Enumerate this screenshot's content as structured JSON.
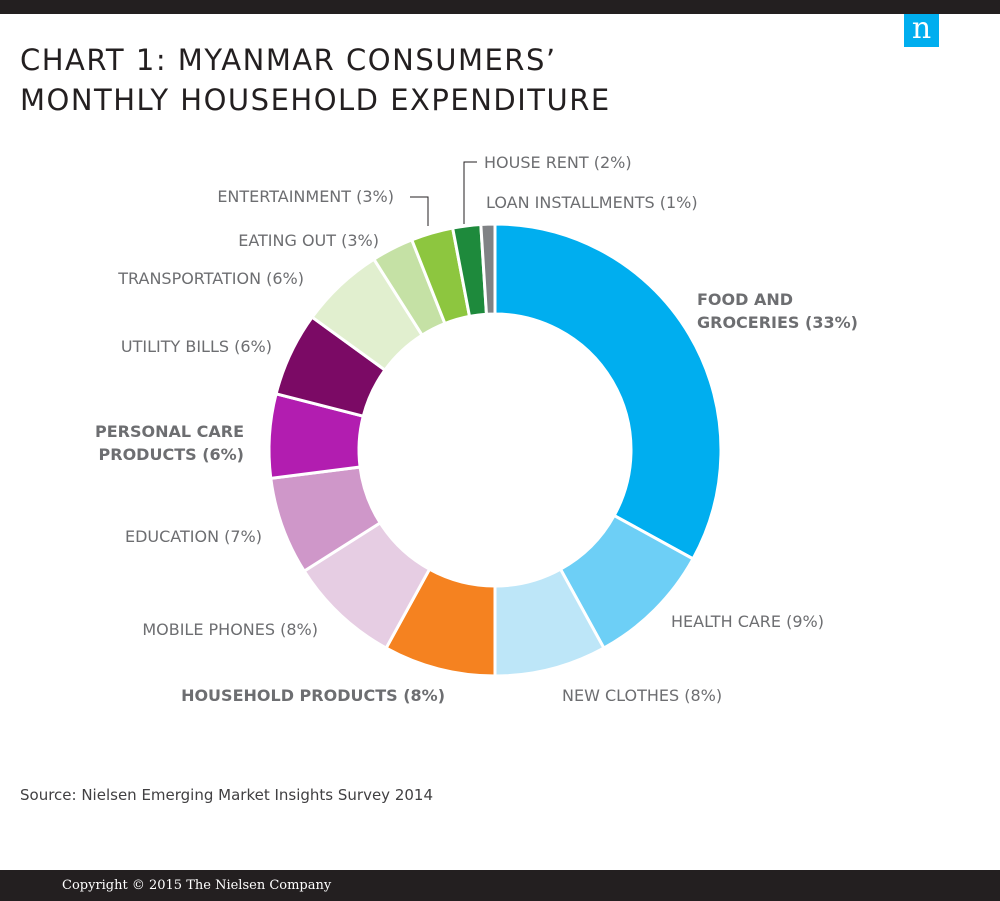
{
  "header": {
    "title_line1": "CHART 1: MYANMAR CONSUMERS’",
    "title_line2": "MONTHLY HOUSEHOLD EXPENDITURE",
    "logo_text": "n"
  },
  "chart_data": {
    "type": "pie",
    "style": "donut",
    "title": "CHART 1: MYANMAR CONSUMERS’ MONTHLY HOUSEHOLD EXPENDITURE",
    "slices": [
      {
        "label": "FOOD AND GROCERIES (33%)",
        "label_lines": [
          "FOOD AND",
          "GROCERIES (33%)"
        ],
        "value": 33,
        "color": "#00aeef",
        "highlight": true
      },
      {
        "label": "HEALTH CARE (9%)",
        "label_lines": [
          "HEALTH CARE (9%)"
        ],
        "value": 9,
        "color": "#6dcff6",
        "highlight": false
      },
      {
        "label": "NEW CLOTHES (8%)",
        "label_lines": [
          "NEW CLOTHES (8%)"
        ],
        "value": 8,
        "color": "#bde6f8",
        "highlight": false
      },
      {
        "label": "HOUSEHOLD PRODUCTS (8%)",
        "label_lines": [
          "HOUSEHOLD PRODUCTS (8%)"
        ],
        "value": 8,
        "color": "#f58220",
        "highlight": true
      },
      {
        "label": "MOBILE PHONES (8%)",
        "label_lines": [
          "MOBILE PHONES (8%)"
        ],
        "value": 8,
        "color": "#e6cde3",
        "highlight": false
      },
      {
        "label": "EDUCATION (7%)",
        "label_lines": [
          "EDUCATION (7%)"
        ],
        "value": 7,
        "color": "#cf97c9",
        "highlight": false
      },
      {
        "label": "PERSONAL CARE PRODUCTS (6%)",
        "label_lines": [
          "PERSONAL CARE",
          "PRODUCTS (6%)"
        ],
        "value": 6,
        "color": "#b21db0",
        "highlight": true
      },
      {
        "label": "UTILITY BILLS (6%)",
        "label_lines": [
          "UTILITY BILLS (6%)"
        ],
        "value": 6,
        "color": "#7b0a65",
        "highlight": false
      },
      {
        "label": "TRANSPORTATION (6%)",
        "label_lines": [
          "TRANSPORTATION (6%)"
        ],
        "value": 6,
        "color": "#e1efcf",
        "highlight": false
      },
      {
        "label": "EATING OUT (3%)",
        "label_lines": [
          "EATING OUT (3%)"
        ],
        "value": 3,
        "color": "#c5e1a5",
        "highlight": false
      },
      {
        "label": "ENTERTAINMENT (3%)",
        "label_lines": [
          "ENTERTAINMENT (3%)"
        ],
        "value": 3,
        "color": "#8dc63f",
        "highlight": false
      },
      {
        "label": "HOUSE RENT (2%)",
        "label_lines": [
          "HOUSE RENT (2%)"
        ],
        "value": 2,
        "color": "#1e8a3c",
        "highlight": false
      },
      {
        "label": "LOAN INSTALLMENTS (1%)",
        "label_lines": [
          "LOAN INSTALLMENTS (1%)"
        ],
        "value": 1,
        "color": "#808285",
        "highlight": false
      }
    ]
  },
  "footer": {
    "source": "Source: Nielsen Emerging Market Insights Survey 2014",
    "copyright": "Copyright © 2015 The Nielsen Company"
  }
}
